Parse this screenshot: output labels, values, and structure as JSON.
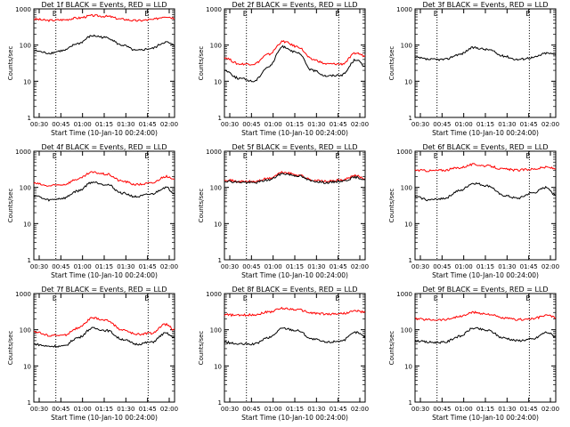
{
  "chart_data": [
    {
      "type": "line",
      "title": "Det 1f BLACK = Events, RED = LLD",
      "ylabel": "Counts/sec",
      "xlabel": "Start Time (10-Jan-10 00:24:00)",
      "x_ticks": [
        "00:30",
        "00:45",
        "01:00",
        "01:15",
        "01:30",
        "01:45",
        "02:00"
      ],
      "x": [
        0,
        10,
        20,
        30,
        40,
        50,
        60,
        70,
        80,
        90,
        96
      ],
      "ylim": [
        1,
        1000
      ],
      "yscale": "log",
      "y_ticks": [
        "1",
        "10",
        "100",
        "1000"
      ],
      "markers": [
        {
          "x": 15,
          "label": "E"
        },
        {
          "x": 78,
          "label": "E"
        }
      ],
      "series": [
        {
          "name": "Events",
          "color": "#000000",
          "values": [
            70,
            60,
            70,
            110,
            180,
            160,
            100,
            70,
            80,
            120,
            100
          ]
        },
        {
          "name": "LLD",
          "color": "#ff0000",
          "values": [
            520,
            480,
            500,
            560,
            650,
            620,
            520,
            470,
            500,
            620,
            560
          ]
        }
      ]
    },
    {
      "type": "line",
      "title": "Det 2f BLACK = Events, RED = LLD",
      "ylabel": "Counts/sec",
      "xlabel": "Start Time (10-Jan-10 00:24:00)",
      "x_ticks": [
        "00:30",
        "00:45",
        "01:00",
        "01:15",
        "01:30",
        "01:45",
        "02:00"
      ],
      "x": [
        0,
        10,
        20,
        30,
        40,
        50,
        60,
        70,
        80,
        90,
        96
      ],
      "ylim": [
        1,
        1000
      ],
      "yscale": "log",
      "y_ticks": [
        "1",
        "10",
        "100",
        "1000"
      ],
      "markers": [
        {
          "x": 15,
          "label": "E"
        },
        {
          "x": 78,
          "label": "E"
        }
      ],
      "series": [
        {
          "name": "Events",
          "color": "#000000",
          "values": [
            20,
            12,
            10,
            25,
            90,
            60,
            20,
            14,
            15,
            40,
            25
          ]
        },
        {
          "name": "LLD",
          "color": "#ff0000",
          "values": [
            45,
            30,
            30,
            55,
            125,
            90,
            40,
            30,
            30,
            60,
            50
          ]
        }
      ]
    },
    {
      "type": "line",
      "title": "Det 3f BLACK = Events, RED = LLD",
      "ylabel": "Counts/sec",
      "xlabel": "Start Time (10-Jan-10 00:24:00)",
      "x_ticks": [
        "00:30",
        "00:45",
        "01:00",
        "01:15",
        "01:30",
        "01:45",
        "02:00"
      ],
      "x": [
        0,
        10,
        20,
        30,
        40,
        50,
        60,
        70,
        80,
        90,
        96
      ],
      "ylim": [
        1,
        1000
      ],
      "yscale": "log",
      "y_ticks": [
        "1",
        "10",
        "100",
        "1000"
      ],
      "markers": [
        {
          "x": 15,
          "label": "E"
        },
        {
          "x": 78,
          "label": "E"
        }
      ],
      "series": [
        {
          "name": "Events",
          "color": "#000000",
          "values": [
            45,
            40,
            40,
            55,
            85,
            75,
            50,
            40,
            45,
            60,
            55
          ]
        }
      ]
    },
    {
      "type": "line",
      "title": "Det 4f BLACK = Events, RED = LLD",
      "ylabel": "Counts/sec",
      "xlabel": "Start Time (10-Jan-10 00:24:00)",
      "x_ticks": [
        "00:30",
        "00:45",
        "01:00",
        "01:15",
        "01:30",
        "01:45",
        "02:00"
      ],
      "x": [
        0,
        10,
        20,
        30,
        40,
        50,
        60,
        70,
        80,
        90,
        96
      ],
      "ylim": [
        1,
        1000
      ],
      "yscale": "log",
      "y_ticks": [
        "1",
        "10",
        "100",
        "1000"
      ],
      "markers": [
        {
          "x": 15,
          "label": "E"
        },
        {
          "x": 78,
          "label": "E"
        }
      ],
      "series": [
        {
          "name": "Events",
          "color": "#000000",
          "values": [
            60,
            45,
            50,
            80,
            140,
            120,
            70,
            55,
            65,
            100,
            70
          ]
        },
        {
          "name": "LLD",
          "color": "#ff0000",
          "values": [
            130,
            110,
            120,
            170,
            260,
            230,
            150,
            120,
            130,
            200,
            160
          ]
        }
      ]
    },
    {
      "type": "line",
      "title": "Det 5f BLACK = Events, RED = LLD",
      "ylabel": "Counts/sec",
      "xlabel": "Start Time (10-Jan-10 00:24:00)",
      "x_ticks": [
        "00:30",
        "00:45",
        "01:00",
        "01:15",
        "01:30",
        "01:45",
        "02:00"
      ],
      "x": [
        0,
        10,
        20,
        30,
        40,
        50,
        60,
        70,
        80,
        90,
        96
      ],
      "ylim": [
        1,
        1000
      ],
      "yscale": "log",
      "y_ticks": [
        "1",
        "10",
        "100",
        "1000"
      ],
      "markers": [
        {
          "x": 15,
          "label": "E"
        },
        {
          "x": 78,
          "label": "E"
        }
      ],
      "series": [
        {
          "name": "Events",
          "color": "#000000",
          "values": [
            150,
            140,
            135,
            160,
            240,
            210,
            150,
            135,
            150,
            190,
            165
          ]
        },
        {
          "name": "LLD",
          "color": "#ff0000",
          "values": [
            165,
            145,
            145,
            175,
            260,
            225,
            160,
            145,
            160,
            210,
            175
          ]
        }
      ]
    },
    {
      "type": "line",
      "title": "Det 6f BLACK = Events, RED = LLD",
      "ylabel": "Counts/sec",
      "xlabel": "Start Time (10-Jan-10 00:24:00)",
      "x_ticks": [
        "00:30",
        "00:45",
        "01:00",
        "01:15",
        "01:30",
        "01:45",
        "02:00"
      ],
      "x": [
        0,
        10,
        20,
        30,
        40,
        50,
        60,
        70,
        80,
        90,
        96
      ],
      "ylim": [
        1,
        1000
      ],
      "yscale": "log",
      "y_ticks": [
        "1",
        "10",
        "100",
        "1000"
      ],
      "markers": [
        {
          "x": 15,
          "label": "E"
        },
        {
          "x": 78,
          "label": "E"
        }
      ],
      "series": [
        {
          "name": "Events",
          "color": "#000000",
          "values": [
            55,
            45,
            50,
            80,
            130,
            110,
            60,
            50,
            70,
            100,
            60
          ]
        },
        {
          "name": "LLD",
          "color": "#ff0000",
          "values": [
            300,
            290,
            300,
            350,
            430,
            390,
            320,
            300,
            320,
            360,
            330
          ]
        }
      ]
    },
    {
      "type": "line",
      "title": "Det 7f BLACK = Events, RED = LLD",
      "ylabel": "Counts/sec",
      "xlabel": "Start Time (10-Jan-10 00:24:00)",
      "x_ticks": [
        "00:30",
        "00:45",
        "01:00",
        "01:15",
        "01:30",
        "01:45",
        "02:00"
      ],
      "x": [
        0,
        10,
        20,
        30,
        40,
        50,
        60,
        70,
        80,
        90,
        96
      ],
      "ylim": [
        1,
        1000
      ],
      "yscale": "log",
      "y_ticks": [
        "1",
        "10",
        "100",
        "1000"
      ],
      "markers": [
        {
          "x": 15,
          "label": "E"
        },
        {
          "x": 78,
          "label": "E"
        }
      ],
      "series": [
        {
          "name": "Events",
          "color": "#000000",
          "values": [
            40,
            35,
            35,
            60,
            110,
            95,
            55,
            40,
            45,
            80,
            60
          ]
        },
        {
          "name": "LLD",
          "color": "#ff0000",
          "values": [
            90,
            70,
            70,
            110,
            210,
            180,
            100,
            75,
            80,
            140,
            100
          ]
        }
      ]
    },
    {
      "type": "line",
      "title": "Det 8f BLACK = Events, RED = LLD",
      "ylabel": "Counts/sec",
      "xlabel": "Start Time (10-Jan-10 00:24:00)",
      "x_ticks": [
        "00:30",
        "00:45",
        "01:00",
        "01:15",
        "01:30",
        "01:45",
        "02:00"
      ],
      "x": [
        0,
        10,
        20,
        30,
        40,
        50,
        60,
        70,
        80,
        90,
        96
      ],
      "ylim": [
        1,
        1000
      ],
      "yscale": "log",
      "y_ticks": [
        "1",
        "10",
        "100",
        "1000"
      ],
      "markers": [
        {
          "x": 15,
          "label": "E"
        },
        {
          "x": 78,
          "label": "E"
        }
      ],
      "series": [
        {
          "name": "Events",
          "color": "#000000",
          "values": [
            45,
            40,
            40,
            60,
            110,
            95,
            55,
            45,
            50,
            85,
            65
          ]
        },
        {
          "name": "LLD",
          "color": "#ff0000",
          "values": [
            260,
            250,
            260,
            310,
            390,
            360,
            290,
            270,
            280,
            330,
            300
          ]
        }
      ]
    },
    {
      "type": "line",
      "title": "Det 9f BLACK = Events, RED = LLD",
      "ylabel": "Counts/sec",
      "xlabel": "Start Time (10-Jan-10 00:24:00)",
      "x_ticks": [
        "00:30",
        "00:45",
        "01:00",
        "01:15",
        "01:30",
        "01:45",
        "02:00"
      ],
      "x": [
        0,
        10,
        20,
        30,
        40,
        50,
        60,
        70,
        80,
        90,
        96
      ],
      "ylim": [
        1,
        1000
      ],
      "yscale": "log",
      "y_ticks": [
        "1",
        "10",
        "100",
        "1000"
      ],
      "markers": [
        {
          "x": 15,
          "label": "E"
        },
        {
          "x": 78,
          "label": "E"
        }
      ],
      "series": [
        {
          "name": "Events",
          "color": "#000000",
          "values": [
            50,
            45,
            45,
            65,
            110,
            95,
            60,
            50,
            55,
            85,
            65
          ]
        },
        {
          "name": "LLD",
          "color": "#ff0000",
          "values": [
            200,
            190,
            190,
            230,
            300,
            270,
            210,
            190,
            200,
            250,
            220
          ]
        }
      ]
    }
  ]
}
